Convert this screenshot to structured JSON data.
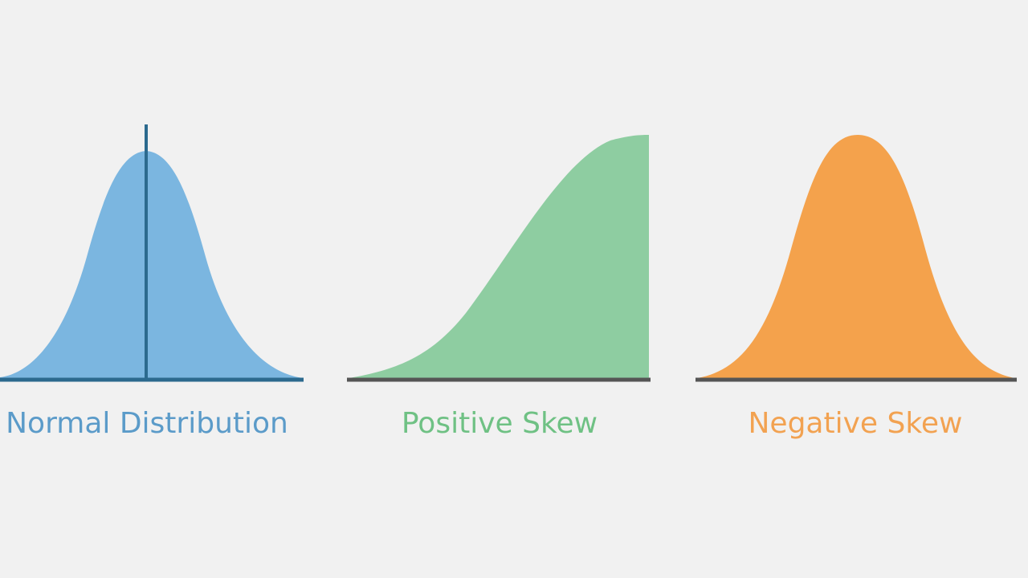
{
  "panels": [
    {
      "id": "normal",
      "label": "Normal Distribution",
      "color": "#7bb6e0",
      "axis_color": "#2c6a8e",
      "label_color": "#5b9bc9"
    },
    {
      "id": "positive",
      "label": "Positive Skew",
      "color": "#8ecda1",
      "axis_color": "#555555",
      "label_color": "#6fc184"
    },
    {
      "id": "negative",
      "label": "Negative Skew",
      "color": "#f4a24c",
      "axis_color": "#555555",
      "label_color": "#f2a251"
    }
  ]
}
